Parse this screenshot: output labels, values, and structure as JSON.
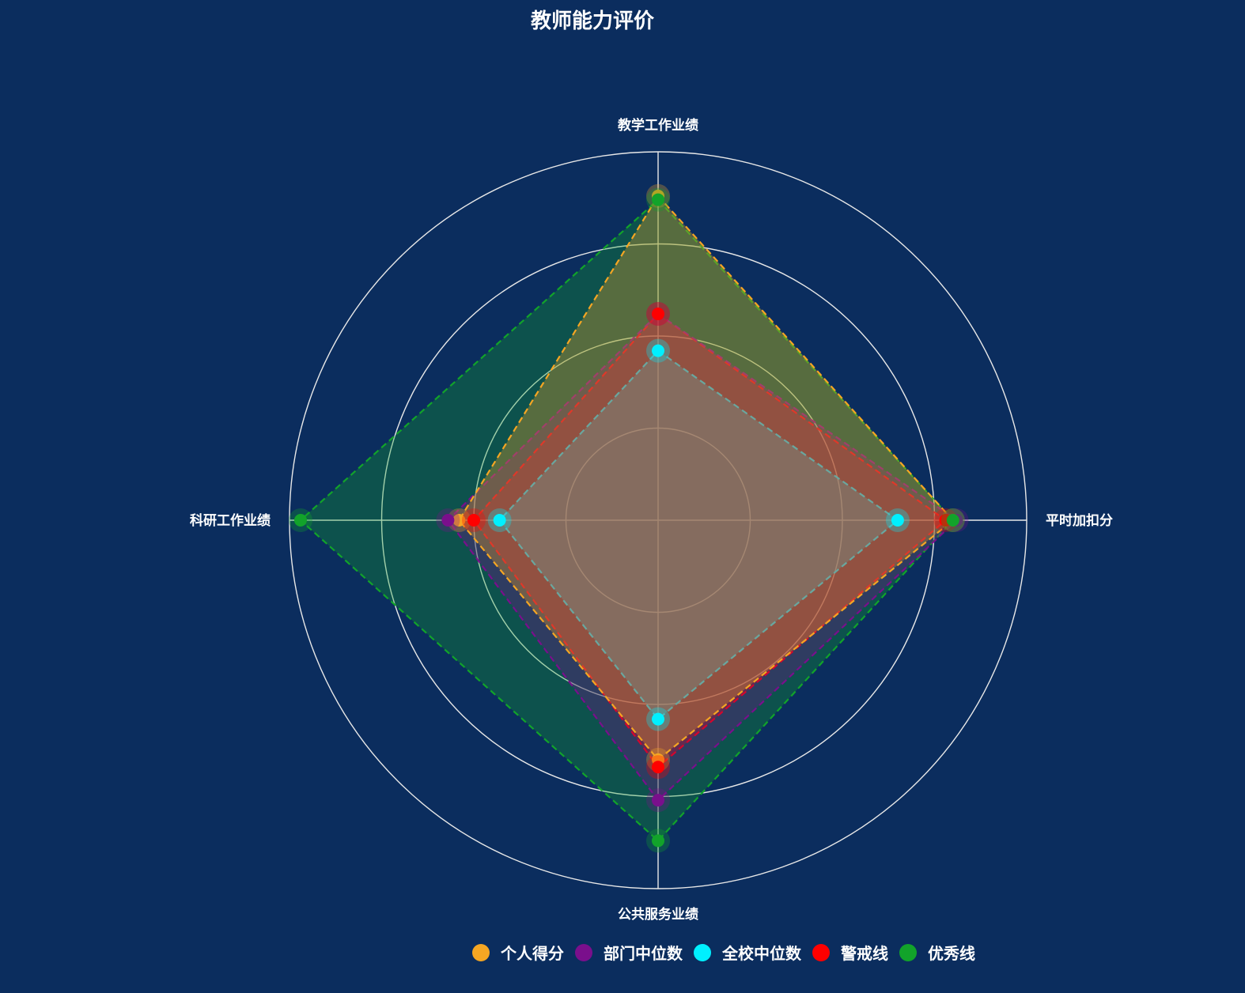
{
  "chart_data": {
    "type": "radar",
    "title": "教师能力评价",
    "indicators": [
      "教学工作业绩",
      "平时加扣分",
      "公共服务业绩",
      "科研工作业绩"
    ],
    "max": 100,
    "split_number": 4,
    "series": [
      {
        "name": "个人得分",
        "color": "#f5a623",
        "values": [
          88,
          80,
          65,
          54
        ]
      },
      {
        "name": "部门中位数",
        "color": "#7a0f8c",
        "values": [
          56,
          81,
          76,
          57
        ]
      },
      {
        "name": "全校中位数",
        "color": "#00f0ff",
        "values": [
          46,
          65,
          54,
          43
        ]
      },
      {
        "name": "警戒线",
        "color": "#ff0000",
        "values": [
          56,
          78,
          67,
          50
        ]
      },
      {
        "name": "优秀线",
        "color": "#12a32a",
        "values": [
          87,
          80,
          87,
          97
        ]
      }
    ],
    "legend_position": "bottom-center"
  }
}
